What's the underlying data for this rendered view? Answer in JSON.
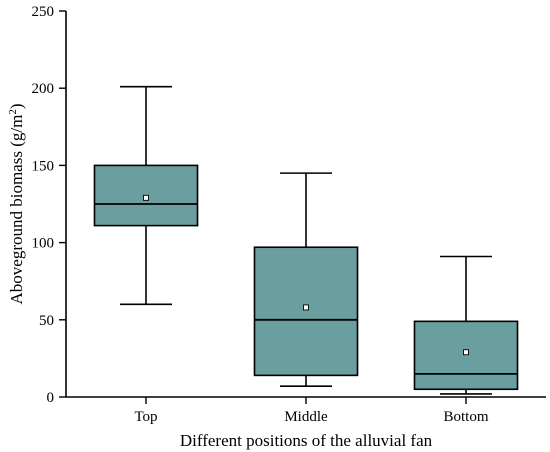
{
  "chart_data": {
    "type": "box",
    "xlabel": "Different positions of the alluvial fan",
    "ylabel_main": "Aboveground biomass (g/m",
    "ylabel_sup": "2",
    "ylabel_close": ")",
    "ylim": [
      0,
      250
    ],
    "yticks": [
      0,
      50,
      100,
      150,
      200,
      250
    ],
    "categories": [
      "Top",
      "Middle",
      "Bottom"
    ],
    "box_color": "#6b9e9e",
    "boxes": [
      {
        "category": "Top",
        "whisker_low": 60,
        "q1": 111,
        "median": 125,
        "q3": 150,
        "whisker_high": 201,
        "mean": 129
      },
      {
        "category": "Middle",
        "whisker_low": 7,
        "q1": 14,
        "median": 50,
        "q3": 97,
        "whisker_high": 145,
        "mean": 58
      },
      {
        "category": "Bottom",
        "whisker_low": 2,
        "q1": 5,
        "median": 15,
        "q3": 49,
        "whisker_high": 91,
        "mean": 29
      }
    ]
  }
}
